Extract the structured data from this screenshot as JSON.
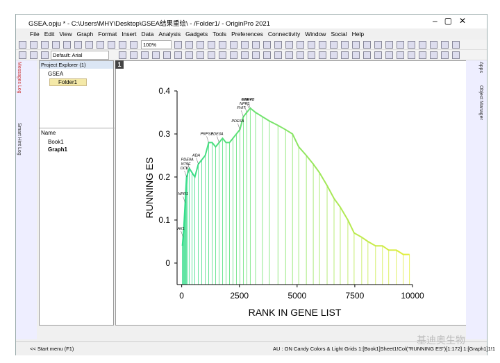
{
  "window": {
    "title": "GSEA.opju * - C:\\Users\\MHY\\Desktop\\GSEA结果重绘\\ - /Folder1/ - OriginPro 2021"
  },
  "menu": [
    "File",
    "Edit",
    "View",
    "Graph",
    "Format",
    "Insert",
    "Data",
    "Analysis",
    "Gadgets",
    "Tools",
    "Preferences",
    "Connectivity",
    "Window",
    "Social",
    "Help"
  ],
  "toolbar": {
    "zoom": "100%",
    "font": "Default: Arial"
  },
  "side": {
    "left": [
      "Messages Log",
      "Smart Hint Log"
    ],
    "right": [
      "Apps",
      "Object Manager"
    ]
  },
  "project_explorer": {
    "title": "Project Explorer (1)",
    "root": "GSEA",
    "folder": "Folder1",
    "column": "Name",
    "items": [
      "Book1",
      "Graph1"
    ]
  },
  "page_tab": "1",
  "status": {
    "start": "<< Start menu (F1)",
    "info": "AU : ON  Candy Colors & Light Grids  1:[Book1]Sheet1!Col(\"RUNNING ES\")[1:172]  1:[Graph1]1!1"
  },
  "watermark": "基迪奥生物",
  "chart_data": {
    "type": "line",
    "xlabel": "RANK IN GENE LIST",
    "ylabel": "RUNNING ES",
    "x": [
      30,
      60,
      90,
      120,
      150,
      180,
      210,
      270,
      330,
      450,
      570,
      720,
      870,
      1020,
      1170,
      1320,
      1470,
      1620,
      1770,
      1920,
      2070,
      2220,
      2370,
      2520,
      2670,
      2820,
      2970,
      3200,
      3500,
      3800,
      4170,
      4500,
      4800,
      5070,
      5400,
      5700,
      5970,
      6300,
      6600,
      6870,
      7200,
      7470,
      7800,
      8070,
      8400,
      8700,
      8970,
      9300,
      9600,
      9870
    ],
    "values": [
      0.04,
      0.06,
      0.08,
      0.11,
      0.14,
      0.17,
      0.2,
      0.21,
      0.22,
      0.21,
      0.2,
      0.23,
      0.24,
      0.25,
      0.28,
      0.28,
      0.27,
      0.28,
      0.29,
      0.28,
      0.28,
      0.29,
      0.3,
      0.31,
      0.34,
      0.35,
      0.36,
      0.35,
      0.34,
      0.33,
      0.32,
      0.31,
      0.3,
      0.27,
      0.25,
      0.23,
      0.21,
      0.18,
      0.15,
      0.13,
      0.1,
      0.07,
      0.06,
      0.05,
      0.04,
      0.04,
      0.03,
      0.03,
      0.02,
      0.02
    ],
    "xlim": [
      -200,
      10000
    ],
    "ylim": [
      -0.05,
      0.4
    ],
    "xticks": [
      0,
      2500,
      5000,
      7500,
      10000
    ],
    "yticks": [
      0,
      0.1,
      0.2,
      0.3,
      0.4
    ],
    "colors": [
      "#2fdc8c",
      "#e6ee3a"
    ],
    "drop_lines": true,
    "annotations": [
      {
        "label": "AK1",
        "x": 60,
        "y": 0.06
      },
      {
        "label": "NPR1",
        "x": 150,
        "y": 0.14
      },
      {
        "label": "DCK",
        "x": 210,
        "y": 0.2
      },
      {
        "label": "NT5E",
        "x": 270,
        "y": 0.21
      },
      {
        "label": "PDE9A",
        "x": 330,
        "y": 0.22
      },
      {
        "label": "ADA",
        "x": 720,
        "y": 0.23
      },
      {
        "label": "PRPS1",
        "x": 1170,
        "y": 0.28
      },
      {
        "label": "PDE3A",
        "x": 1620,
        "y": 0.28
      },
      {
        "label": "PDE6A",
        "x": 2520,
        "y": 0.31
      },
      {
        "label": "FHIT",
        "x": 2670,
        "y": 0.34
      },
      {
        "label": "NPR1",
        "x": 2820,
        "y": 0.35
      },
      {
        "label": "GART",
        "x": 2900,
        "y": 0.36
      },
      {
        "label": "PDE4B",
        "x": 2970,
        "y": 0.36
      }
    ]
  }
}
